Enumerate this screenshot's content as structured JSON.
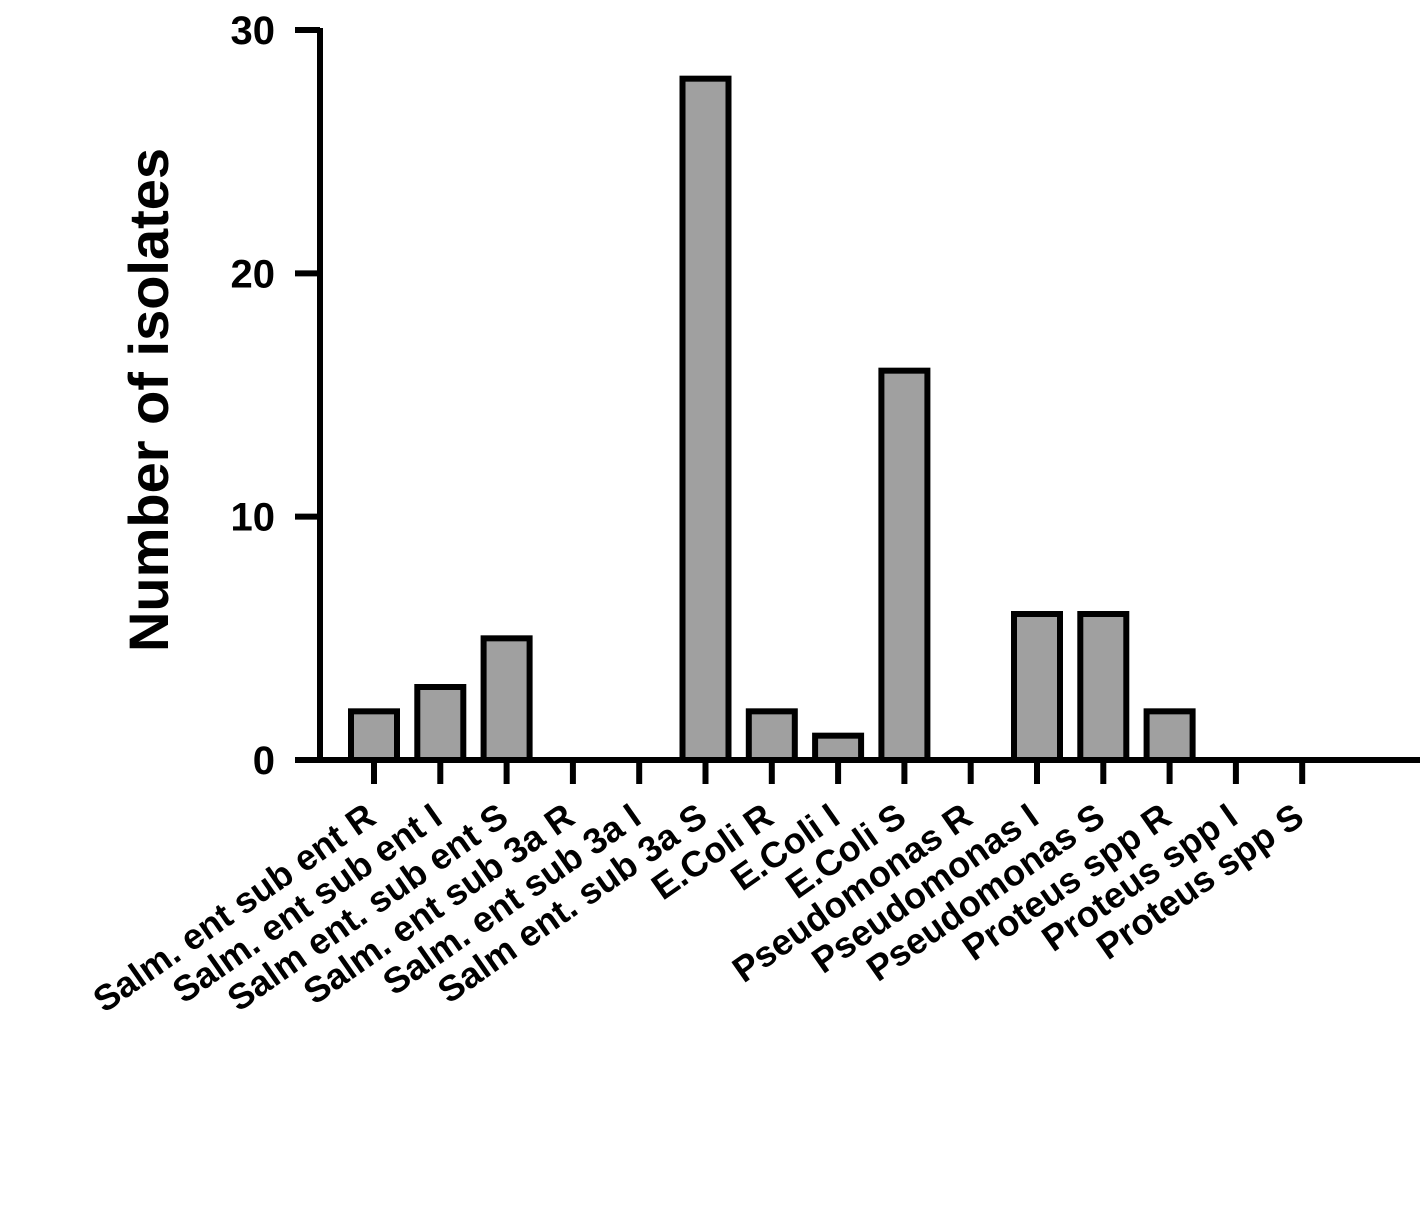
{
  "chart_data": {
    "type": "bar",
    "title": "",
    "xlabel": "",
    "ylabel": "Number of isolates",
    "ylim": [
      0,
      30
    ],
    "yticks": [
      0,
      10,
      20,
      30
    ],
    "grid": false,
    "categories": [
      "Salm. ent sub ent R",
      "Salm. ent sub ent I",
      "Salm ent. sub ent S",
      "Salm. ent sub 3a R",
      "Salm. ent sub 3a  I",
      "Salm ent. sub 3a S",
      "E.Coli R",
      "E.Coli I",
      "E.Coli S",
      "Pseudomonas R",
      "Pseudomonas I",
      "Pseudomonas S",
      "Proteus spp R",
      "Proteus spp I",
      "Proteus spp S"
    ],
    "values": [
      2,
      3,
      5,
      0,
      0,
      28,
      2,
      1,
      16,
      0,
      6,
      6,
      2,
      0,
      0
    ],
    "colors": {
      "bar_fill": "#a0a0a0",
      "bar_stroke": "#000000",
      "axis": "#000000"
    }
  }
}
